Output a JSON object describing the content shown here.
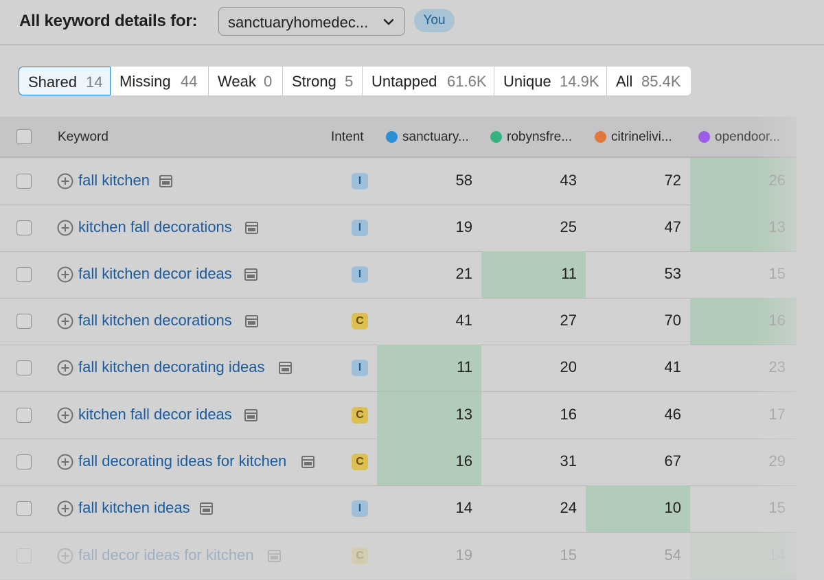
{
  "header": {
    "title": "All keyword details for:",
    "domain_value": "sanctuaryhomedec...",
    "you_badge": "You"
  },
  "tabs": [
    {
      "label": "Shared",
      "count": "14",
      "active": true
    },
    {
      "label": "Missing",
      "count": "44"
    },
    {
      "label": "Weak",
      "count": "0"
    },
    {
      "label": "Strong",
      "count": "5"
    },
    {
      "label": "Untapped",
      "count": "61.6K"
    },
    {
      "label": "Unique",
      "count": "14.9K"
    },
    {
      "label": "All",
      "count": "85.4K"
    }
  ],
  "table": {
    "columns": {
      "keyword": "Keyword",
      "intent": "Intent",
      "domains": [
        {
          "label": "sanctuary...",
          "color": "#2b8fd6"
        },
        {
          "label": "robynsfre...",
          "color": "#36b27f"
        },
        {
          "label": "citrinelivi...",
          "color": "#e0773b"
        },
        {
          "label": "opendoor...",
          "color": "#9b5de5"
        }
      ]
    },
    "rows": [
      {
        "keyword": "fall kitchen",
        "intent": "I",
        "values": [
          "58",
          "43",
          "72",
          "26"
        ]
      },
      {
        "keyword": "kitchen fall decorations",
        "intent": "I",
        "values": [
          "19",
          "25",
          "47",
          "13"
        ]
      },
      {
        "keyword": "fall kitchen decor ideas",
        "intent": "I",
        "values": [
          "21",
          "11",
          "53",
          "15"
        ]
      },
      {
        "keyword": "fall kitchen decorations",
        "intent": "C",
        "values": [
          "41",
          "27",
          "70",
          "16"
        ]
      },
      {
        "keyword": "fall kitchen decorating ideas",
        "intent": "I",
        "values": [
          "11",
          "20",
          "41",
          "23"
        ]
      },
      {
        "keyword": "kitchen fall decor ideas",
        "intent": "C",
        "values": [
          "13",
          "16",
          "46",
          "17"
        ]
      },
      {
        "keyword": "fall decorating ideas for kitchen",
        "intent": "C",
        "values": [
          "16",
          "31",
          "67",
          "29"
        ]
      },
      {
        "keyword": "fall kitchen ideas",
        "intent": "I",
        "values": [
          "14",
          "24",
          "10",
          "15"
        ]
      },
      {
        "keyword": "fall decor ideas for kitchen",
        "intent": "C",
        "values": [
          "19",
          "15",
          "54",
          "14"
        ]
      }
    ]
  },
  "colors": {
    "accent": "#1e7ec8",
    "link": "#1b5a9c",
    "best_position_highlight": "#b3ccb9"
  }
}
